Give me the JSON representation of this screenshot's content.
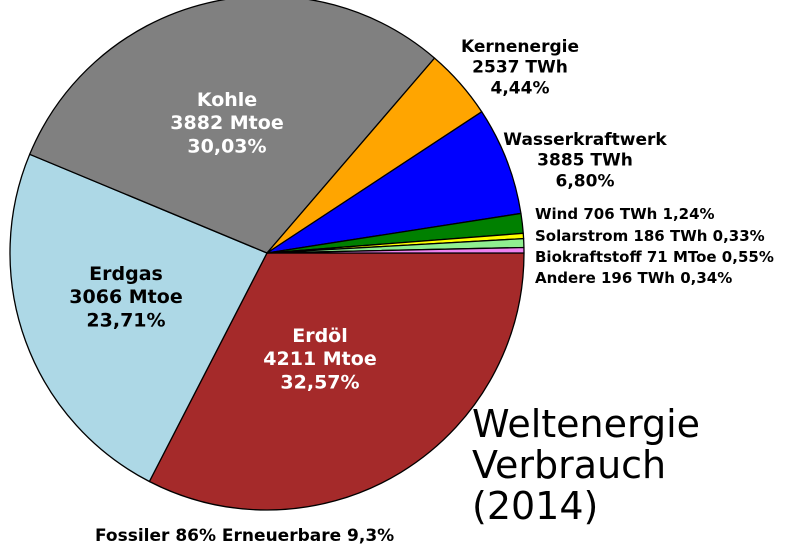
{
  "chart_data": {
    "type": "pie",
    "title": [
      "Weltenergie",
      "Verbrauch",
      "(2014)"
    ],
    "footer": "Fossiler 86% Erneuerbare 9,3%",
    "slices": [
      {
        "name": "Erdöl",
        "amount": "4211 Mtoe",
        "percent_label": "32,57%",
        "value": 32.57,
        "color": "#a52a2a",
        "label_color": "#ffffff"
      },
      {
        "name": "Erdgas",
        "amount": "3066 Mtoe",
        "percent_label": "23,71%",
        "value": 23.71,
        "color": "#add8e6",
        "label_color": "#000000"
      },
      {
        "name": "Kohle",
        "amount": "3882 Mtoe",
        "percent_label": "30,03%",
        "value": 30.03,
        "color": "#808080",
        "label_color": "#ffffff"
      },
      {
        "name": "Kernenergie",
        "amount": "2537 TWh",
        "percent_label": "4,44%",
        "value": 4.44,
        "color": "#ffa500",
        "label_color": "#000000"
      },
      {
        "name": "Wasserkraftwerk",
        "amount": "3885 TWh",
        "percent_label": "6,80%",
        "value": 6.8,
        "color": "#0000ff",
        "label_color": "#000000"
      },
      {
        "name": "Wind",
        "amount": "706 TWh",
        "percent_label": "1,24%",
        "value": 1.24,
        "color": "#008000",
        "label_color": "#000000"
      },
      {
        "name": "Solarstrom",
        "amount": "186 TWh",
        "percent_label": "0,33%",
        "value": 0.33,
        "color": "#ffff00",
        "label_color": "#000000"
      },
      {
        "name": "Biokraftstoff",
        "amount": "71 MToe",
        "percent_label": "0,55%",
        "value": 0.55,
        "color": "#90ee90",
        "label_color": "#000000"
      },
      {
        "name": "Andere",
        "amount": "196 TWh",
        "percent_label": "0,34%",
        "value": 0.34,
        "color": "#ee82ee",
        "label_color": "#000000"
      }
    ]
  }
}
